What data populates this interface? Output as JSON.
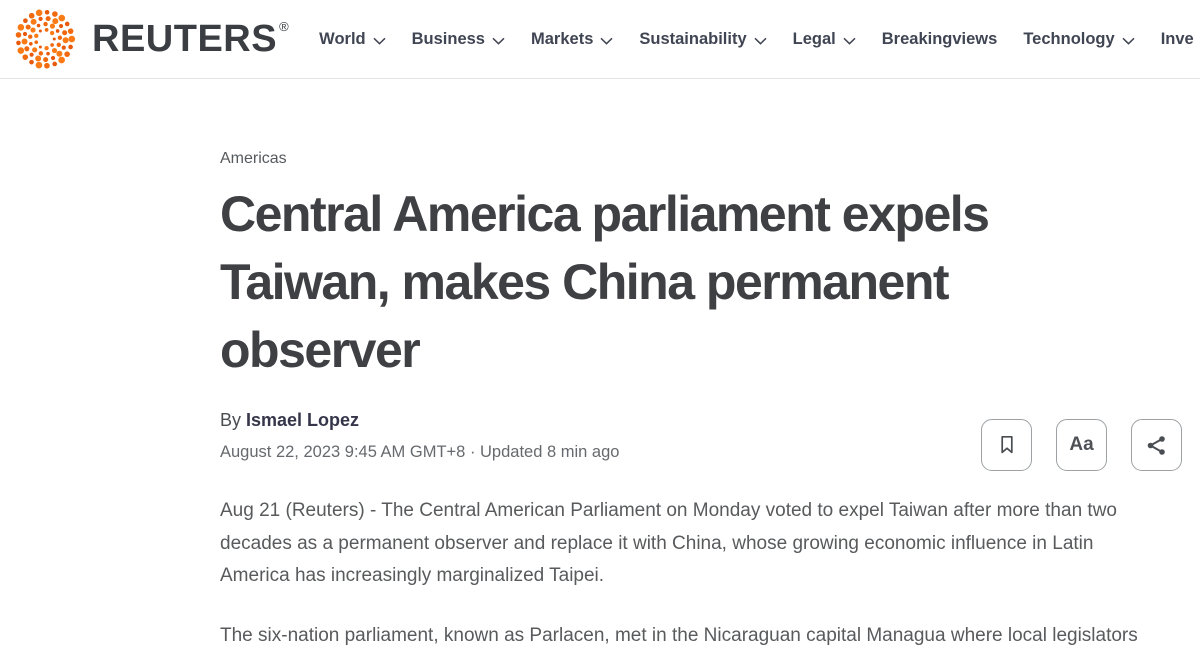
{
  "brand": {
    "name": "REUTERS",
    "registered": "®"
  },
  "nav": {
    "items": [
      {
        "label": "World",
        "chevron": true
      },
      {
        "label": "Business",
        "chevron": true
      },
      {
        "label": "Markets",
        "chevron": true
      },
      {
        "label": "Sustainability",
        "chevron": true
      },
      {
        "label": "Legal",
        "chevron": true
      },
      {
        "label": "Breakingviews",
        "chevron": false
      },
      {
        "label": "Technology",
        "chevron": true
      },
      {
        "label": "Inve",
        "chevron": false
      }
    ]
  },
  "article": {
    "kicker": "Americas",
    "headline": "Central America parliament expels Taiwan, makes China permanent observer",
    "byline_prefix": "By ",
    "author": "Ismael Lopez",
    "dateline": "August 22, 2023 9:45 AM GMT+8 · Updated 8 min ago",
    "paragraphs": [
      "Aug 21 (Reuters) - The Central American Parliament on Monday voted to expel Taiwan after more than two decades as a permanent observer and replace it with China, whose growing economic influence in Latin America has increasingly marginalized Taipei.",
      "The six-nation parliament, known as Parlacen, met in the Nicaraguan capital Managua where local legislators proposed adding China, which claims democratically ruled Taiwan as its own territory."
    ]
  },
  "toolbar": {
    "bookmark_icon": "bookmark-icon",
    "text_size_label": "Aa",
    "share_icon": "share-icon"
  },
  "colors": {
    "brand_orange": "#f1690e",
    "header_text": "#404553",
    "headline_text": "#3f4044",
    "body_text": "#585a5c",
    "border_gray": "#e1e3e6"
  }
}
